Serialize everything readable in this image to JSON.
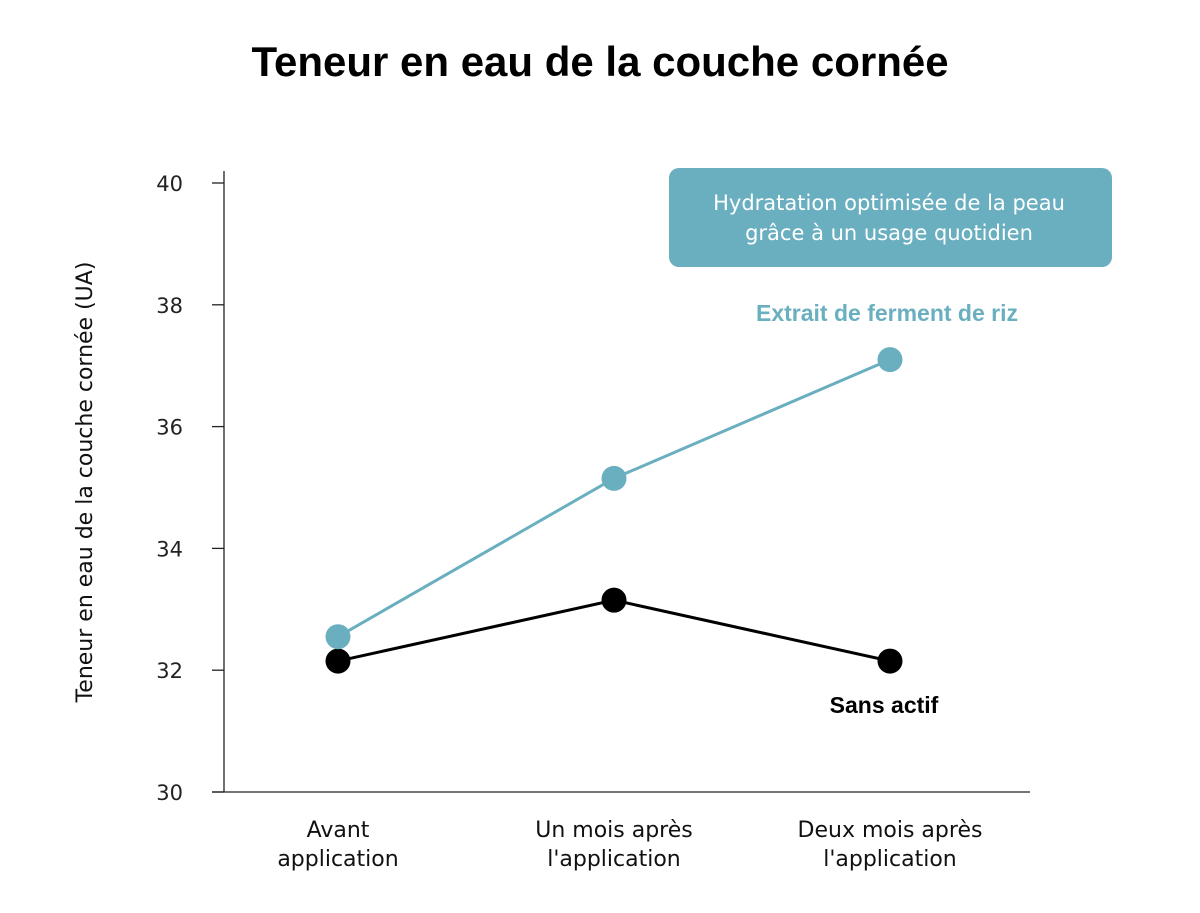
{
  "chart_data": {
    "type": "line",
    "title": "Teneur en eau de la couche cornée",
    "xlabel": "",
    "ylabel": "Teneur en eau de la couche cornée (UA)",
    "categories": [
      [
        "Avant",
        "application"
      ],
      [
        "Un mois après",
        "l'application"
      ],
      [
        "Deux mois après",
        "l'application"
      ]
    ],
    "ylim": [
      30,
      40
    ],
    "yticks": [
      30,
      32,
      34,
      36,
      38,
      40
    ],
    "grid": false,
    "series": [
      {
        "name": "Extrait de ferment de riz",
        "color": "#6aafc0",
        "values": [
          32.55,
          35.15,
          37.1
        ]
      },
      {
        "name": "Sans actif",
        "color": "#000000",
        "values": [
          32.15,
          33.15,
          32.15
        ]
      }
    ],
    "annotation": {
      "lines": [
        "Hydratation optimisée de la peau",
        "grâce à un usage quotidien"
      ],
      "background": "#6aafc0",
      "text_color": "#ffffff"
    }
  }
}
